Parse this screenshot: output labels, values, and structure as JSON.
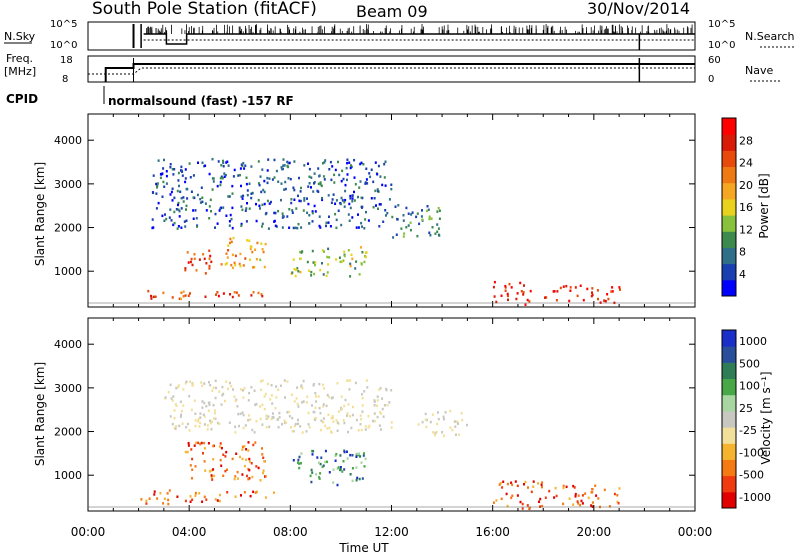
{
  "header": {
    "station": "South Pole Station (fitACF)",
    "beam": "Beam 09",
    "date": "30/Nov/2014"
  },
  "top_panel": {
    "nsky_label": "N.Sky",
    "nsky_ticks": [
      "10^5",
      "10^0"
    ],
    "nsearch_label": "N.Search",
    "nsearch_ticks": [
      "10^5",
      "10^0"
    ],
    "freq_label_1": "Freq.",
    "freq_label_2": "[MHz]",
    "freq_ticks": [
      "18",
      "8"
    ],
    "nave_label": "Nave",
    "nave_ticks": [
      "60",
      "0"
    ],
    "cpid_label": "CPID",
    "cpid_text": "normalsound (fast) -157 RF"
  },
  "colors": {
    "power": [
      "#0000ff",
      "#1a3fb0",
      "#2f6f8a",
      "#3d8a4e",
      "#88c23c",
      "#e8d21e",
      "#f5a623",
      "#ef7a14",
      "#e84a0c",
      "#d81a06",
      "#ff0000"
    ],
    "velocity": [
      "#e00000",
      "#f03a10",
      "#f57a14",
      "#f5b430",
      "#f2e09a",
      "#c8c8c0",
      "#a8d6a0",
      "#48a848",
      "#2e7d56",
      "#2a4f9a",
      "#1a2fc8"
    ]
  },
  "chart_data": [
    {
      "type": "heatmap",
      "name": "power",
      "ylabel": "Slant Range [km]",
      "yticks": [
        1000,
        2000,
        3000,
        4000
      ],
      "ylim": [
        180,
        4600
      ],
      "xlim": [
        0,
        24
      ],
      "colorbar": {
        "label": "Power [dB]",
        "ticks": [
          4,
          8,
          12,
          16,
          20,
          24,
          28
        ],
        "range": [
          0,
          32
        ]
      },
      "echo_regions": [
        {
          "t0": 2.0,
          "t1": 4.0,
          "r0": 350,
          "r1": 600,
          "level": 0.75
        },
        {
          "t0": 3.8,
          "t1": 7.0,
          "r0": 420,
          "r1": 600,
          "level": 0.85
        },
        {
          "t0": 3.8,
          "t1": 5.0,
          "r0": 900,
          "r1": 1500,
          "level": 0.8
        },
        {
          "t0": 5.0,
          "t1": 7.0,
          "r0": 1100,
          "r1": 1800,
          "level": 0.6
        },
        {
          "t0": 8.0,
          "t1": 11.0,
          "r0": 900,
          "r1": 1600,
          "level": 0.4
        },
        {
          "t0": 16.0,
          "t1": 17.5,
          "r0": 250,
          "r1": 800,
          "level": 0.95
        },
        {
          "t0": 18.0,
          "t1": 21.0,
          "r0": 300,
          "r1": 700,
          "level": 0.9
        },
        {
          "t0": 12.0,
          "t1": 14.0,
          "r0": 1800,
          "r1": 2600,
          "level": 0.25
        },
        {
          "t0": 2.5,
          "t1": 12.0,
          "r0": 2000,
          "r1": 3600,
          "level": 0.15
        }
      ]
    },
    {
      "type": "heatmap",
      "name": "velocity",
      "ylabel": "Slant Range [km]",
      "xlabel": "Time UT",
      "yticks": [
        1000,
        2000,
        3000,
        4000
      ],
      "ylim": [
        180,
        4600
      ],
      "xlim": [
        0,
        24
      ],
      "xtick_labels": [
        "00:00",
        "04:00",
        "08:00",
        "12:00",
        "16:00",
        "20:00",
        "00:00"
      ],
      "colorbar": {
        "label": "Velocity [m s⁻¹]",
        "ticks": [
          "1000",
          "500",
          "100",
          "25",
          "-25",
          "-100",
          "-500",
          "-1000"
        ]
      },
      "echo_regions": [
        {
          "t0": 2.0,
          "t1": 3.5,
          "r0": 350,
          "r1": 700,
          "level": "negative"
        },
        {
          "t0": 3.8,
          "t1": 7.5,
          "r0": 420,
          "r1": 650,
          "level": "negative"
        },
        {
          "t0": 3.8,
          "t1": 7.0,
          "r0": 900,
          "r1": 1800,
          "level": "negative"
        },
        {
          "t0": 8.0,
          "t1": 11.0,
          "r0": 800,
          "r1": 1600,
          "level": "positive"
        },
        {
          "t0": 16.0,
          "t1": 18.0,
          "r0": 250,
          "r1": 900,
          "level": "negative"
        },
        {
          "t0": 18.0,
          "t1": 21.0,
          "r0": 300,
          "r1": 800,
          "level": "negative"
        },
        {
          "t0": 13.0,
          "t1": 15.0,
          "r0": 1900,
          "r1": 2500,
          "level": "zero"
        },
        {
          "t0": 3.0,
          "t1": 12.0,
          "r0": 2000,
          "r1": 3200,
          "level": "zero"
        }
      ]
    }
  ]
}
